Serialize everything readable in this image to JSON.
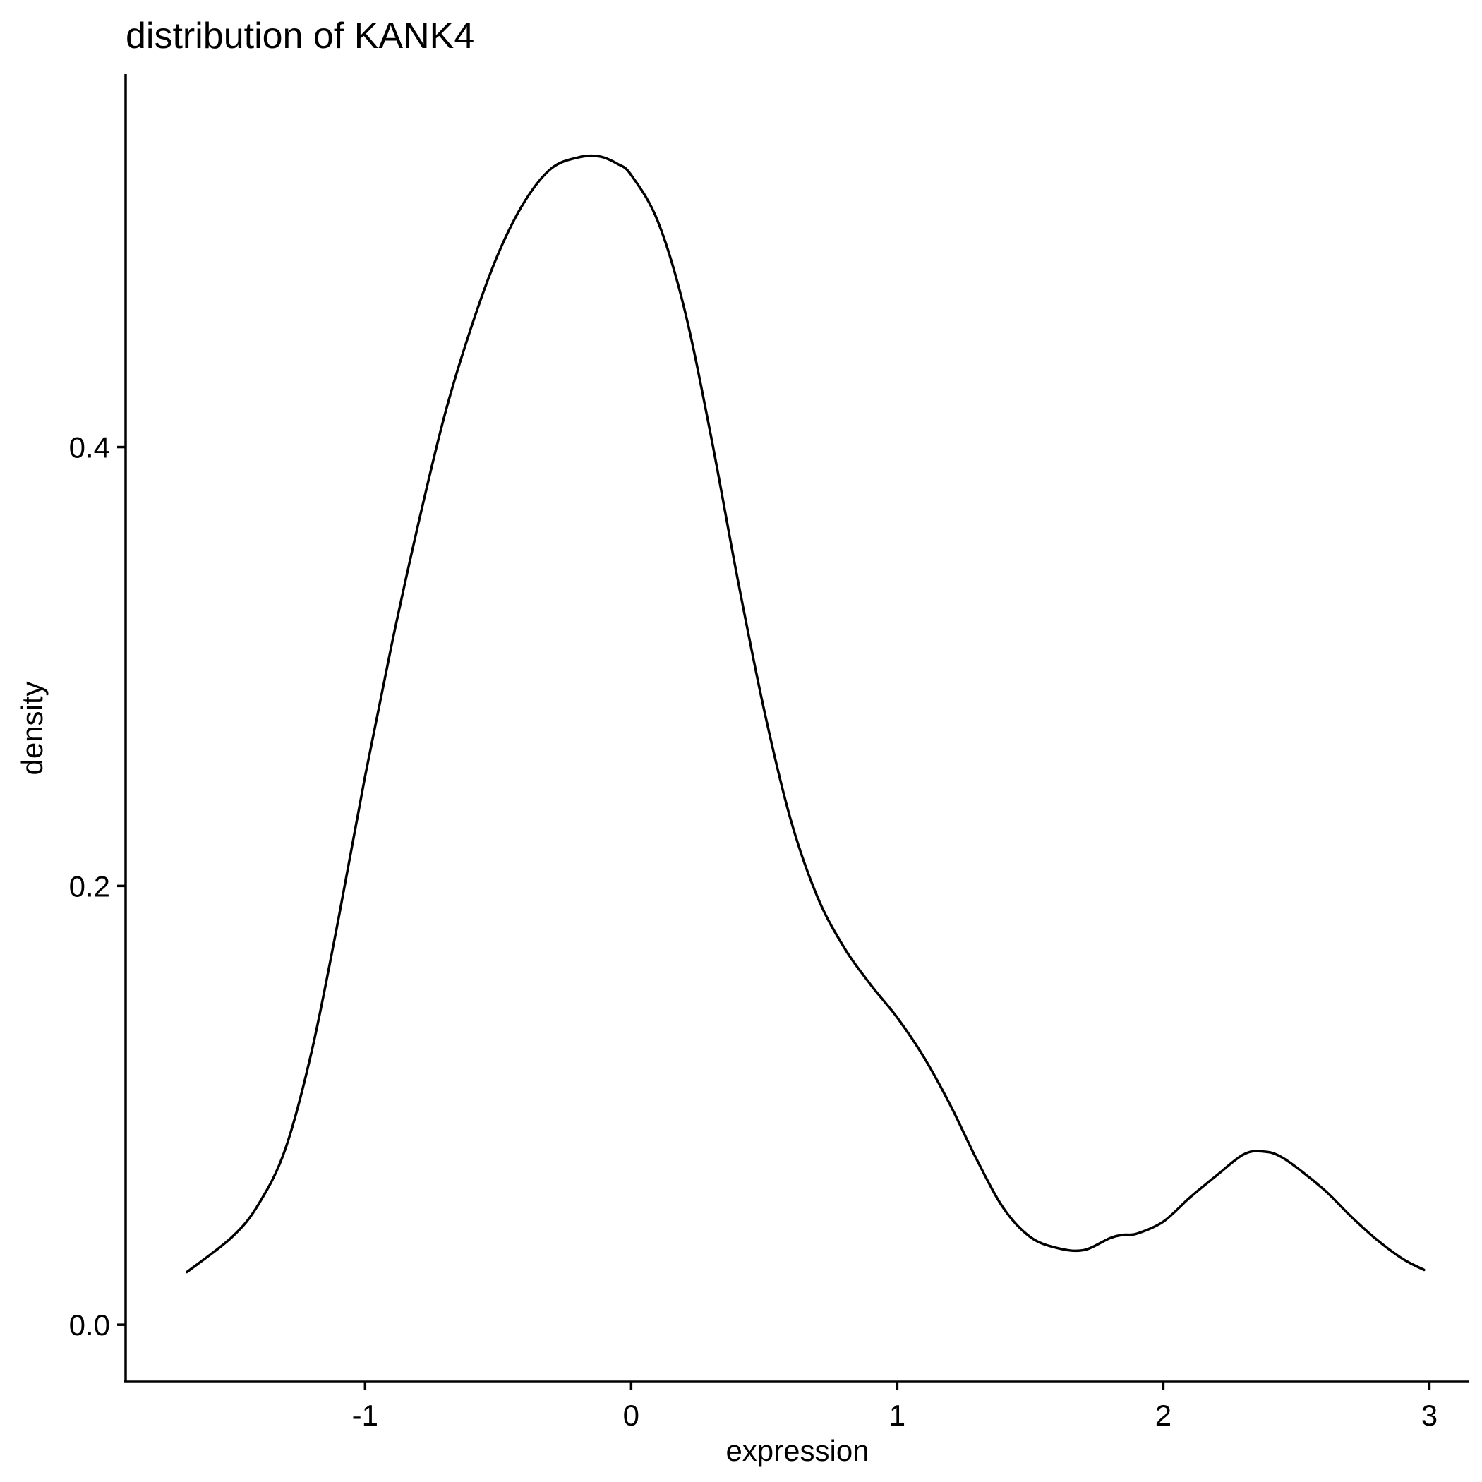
{
  "chart_data": {
    "type": "line",
    "title": "distribution of KANK4",
    "xlabel": "expression",
    "ylabel": "density",
    "xlim": [
      -1.9,
      3.15
    ],
    "ylim": [
      -0.026,
      0.57
    ],
    "x_ticks": [
      -1,
      0,
      1,
      2,
      3
    ],
    "x_tick_labels": [
      "-1",
      "0",
      "1",
      "2",
      "3"
    ],
    "y_ticks": [
      0.0,
      0.2,
      0.4
    ],
    "y_tick_labels": [
      "0.0",
      "0.2",
      "0.4"
    ],
    "grid": false,
    "legend": "none",
    "line_color": "#000000",
    "series": [
      {
        "x": [
          -1.67,
          -1.5,
          -1.4,
          -1.3,
          -1.2,
          -1.1,
          -1.0,
          -0.9,
          -0.8,
          -0.7,
          -0.6,
          -0.5,
          -0.4,
          -0.3,
          -0.2,
          -0.12,
          -0.05,
          0.0,
          0.1,
          0.2,
          0.3,
          0.4,
          0.5,
          0.6,
          0.7,
          0.8,
          0.9,
          1.0,
          1.1,
          1.2,
          1.3,
          1.4,
          1.5,
          1.6,
          1.7,
          1.8,
          1.85,
          1.9,
          2.0,
          2.1,
          2.2,
          2.3,
          2.37,
          2.45,
          2.6,
          2.7,
          2.8,
          2.9,
          2.98
        ],
        "y": [
          0.024,
          0.04,
          0.055,
          0.08,
          0.125,
          0.185,
          0.25,
          0.31,
          0.365,
          0.415,
          0.455,
          0.488,
          0.512,
          0.527,
          0.532,
          0.5325,
          0.529,
          0.524,
          0.503,
          0.463,
          0.405,
          0.34,
          0.28,
          0.23,
          0.195,
          0.172,
          0.155,
          0.14,
          0.122,
          0.1,
          0.075,
          0.053,
          0.04,
          0.035,
          0.034,
          0.0395,
          0.041,
          0.0415,
          0.047,
          0.058,
          0.068,
          0.0775,
          0.079,
          0.076,
          0.062,
          0.05,
          0.039,
          0.03,
          0.025
        ]
      }
    ]
  }
}
